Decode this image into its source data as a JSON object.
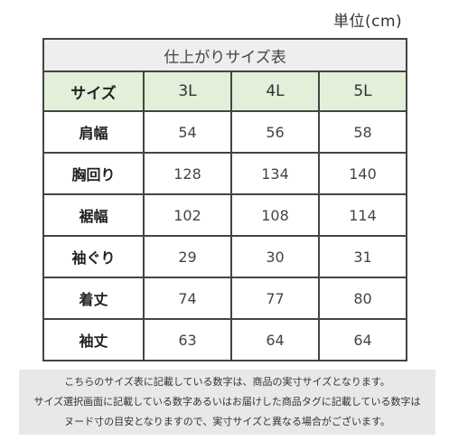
{
  "unit_label": "単位(cm)",
  "table": {
    "caption": "仕上がりサイズ表",
    "header": {
      "label": "サイズ",
      "sizes": [
        "3L",
        "4L",
        "5L"
      ]
    },
    "rows": [
      {
        "label": "肩幅",
        "values": [
          "54",
          "56",
          "58"
        ]
      },
      {
        "label": "胸回り",
        "values": [
          "128",
          "134",
          "140"
        ]
      },
      {
        "label": "裾幅",
        "values": [
          "102",
          "108",
          "114"
        ]
      },
      {
        "label": "袖ぐり",
        "values": [
          "29",
          "30",
          "31"
        ]
      },
      {
        "label": "着丈",
        "values": [
          "74",
          "77",
          "80"
        ]
      },
      {
        "label": "袖丈",
        "values": [
          "63",
          "64",
          "64"
        ]
      }
    ]
  },
  "notice": {
    "lines": [
      "こちらのサイズ表に記載している数字は、商品の実寸サイズとなります。",
      "サイズ選択画面に記載している数字あるいはお届けした商品タグに記載している数字は",
      "ヌード寸の目安となりますので、実寸サイズと異なる場合がございます。"
    ]
  },
  "colors": {
    "header_background": "#e2efd9",
    "caption_background": "#eeeeee",
    "notice_background": "#e8e8e8",
    "border": "#444444"
  }
}
